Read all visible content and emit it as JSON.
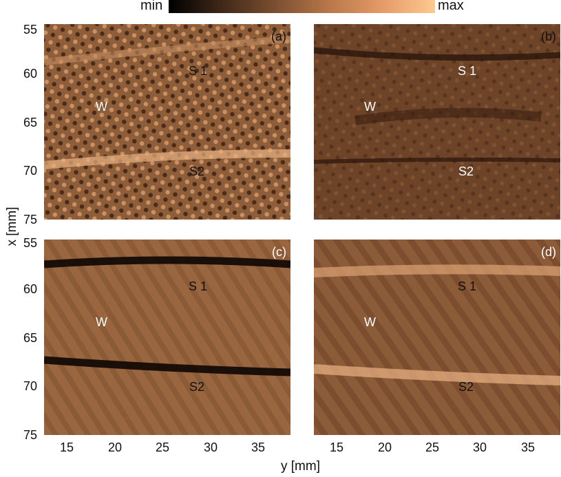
{
  "colorbar": {
    "min_label": "min",
    "max_label": "max"
  },
  "panels": [
    {
      "id": "a",
      "tag": "(a)",
      "labels": [
        "S 1",
        "W",
        "S2"
      ]
    },
    {
      "id": "b",
      "tag": "(b)",
      "labels": [
        "S 1",
        "W",
        "S2"
      ]
    },
    {
      "id": "c",
      "tag": "(c)",
      "labels": [
        "S 1",
        "W",
        "S2"
      ]
    },
    {
      "id": "d",
      "tag": "(d)",
      "labels": [
        "S 1",
        "W",
        "S2"
      ]
    }
  ],
  "axes": {
    "y_title": "x [mm]",
    "x_title": "y [mm]",
    "y_ticks": [
      "55",
      "60",
      "65",
      "70",
      "75"
    ],
    "x_ticks": [
      "15",
      "20",
      "25",
      "30",
      "35"
    ]
  },
  "colors": {
    "dark": "#2a160b",
    "mid": "#8a5a37",
    "light": "#e2a878"
  }
}
